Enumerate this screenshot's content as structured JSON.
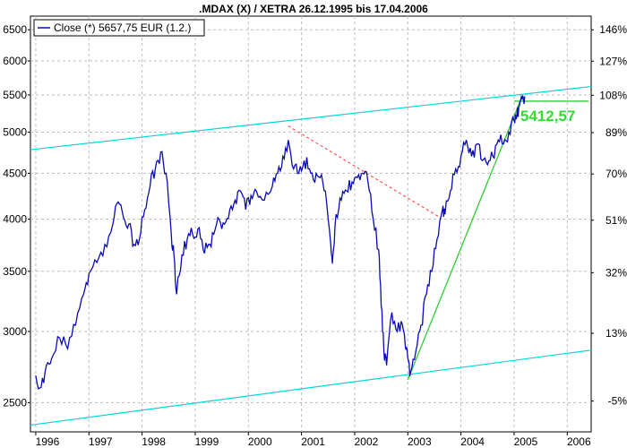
{
  "colors": {
    "price_line": "#0a0ab4",
    "channel": "#00d8d8",
    "support": "#33cc33",
    "resistance": "#ff3333",
    "annotation": "#33dd33",
    "grid": "#bdbdbd"
  },
  "chart_data": {
    "type": "line",
    "title": ".MDAX (X) / XETRA 26.12.1995 bis 17.04.2006",
    "legend": {
      "label": "Close (*) 5657,75 EUR (1.2.)",
      "placement": "top-left"
    },
    "y_scale": "log",
    "ylim": [
      2330,
      6700
    ],
    "xlim": [
      1995.9,
      2006.45
    ],
    "x_tick_labels": [
      "1996",
      "1997",
      "1998",
      "1999",
      "2000",
      "2001",
      "2002",
      "2003",
      "2004",
      "2005",
      "2006"
    ],
    "x_ticks": [
      1996,
      1997,
      1998,
      1999,
      2000,
      2001,
      2002,
      2003,
      2004,
      2005,
      2006
    ],
    "y_ticks_left": [
      2500,
      3000,
      3500,
      4000,
      4500,
      5000,
      5500,
      6000,
      6500
    ],
    "y_tick_labels_left": [
      "2500",
      "3000",
      "3500",
      "4000",
      "4500",
      "5000",
      "5500",
      "6000",
      "6500"
    ],
    "y_ticks_right": [
      -5,
      13,
      32,
      51,
      70,
      89,
      108,
      127,
      146
    ],
    "y_tick_labels_right": [
      "-5%",
      "13%",
      "32%",
      "51%",
      "70%",
      "89%",
      "108%",
      "127%",
      "146%"
    ],
    "right_axis_base": 2642,
    "grid": true,
    "series": [
      {
        "points": [
          [
            1996.0,
            2680
          ],
          [
            1996.1,
            2600
          ],
          [
            1996.2,
            2750
          ],
          [
            1996.3,
            2800
          ],
          [
            1996.45,
            2950
          ],
          [
            1996.6,
            2870
          ],
          [
            1996.75,
            3050
          ],
          [
            1996.9,
            3300
          ],
          [
            1997.0,
            3480
          ],
          [
            1997.15,
            3580
          ],
          [
            1997.3,
            3750
          ],
          [
            1997.45,
            3950
          ],
          [
            1997.55,
            4180
          ],
          [
            1997.65,
            4020
          ],
          [
            1997.75,
            3950
          ],
          [
            1997.85,
            3750
          ],
          [
            1997.95,
            3800
          ],
          [
            1998.05,
            4100
          ],
          [
            1998.15,
            4350
          ],
          [
            1998.25,
            4550
          ],
          [
            1998.35,
            4750
          ],
          [
            1998.45,
            4500
          ],
          [
            1998.55,
            3850
          ],
          [
            1998.6,
            3650
          ],
          [
            1998.65,
            3300
          ],
          [
            1998.75,
            3650
          ],
          [
            1998.85,
            3800
          ],
          [
            1998.95,
            3850
          ],
          [
            1999.05,
            3900
          ],
          [
            1999.15,
            3700
          ],
          [
            1999.25,
            3750
          ],
          [
            1999.35,
            3850
          ],
          [
            1999.45,
            4000
          ],
          [
            1999.55,
            3950
          ],
          [
            1999.65,
            4100
          ],
          [
            1999.75,
            4200
          ],
          [
            1999.85,
            4300
          ],
          [
            1999.95,
            4100
          ],
          [
            2000.05,
            4250
          ],
          [
            2000.15,
            4300
          ],
          [
            2000.3,
            4200
          ],
          [
            2000.45,
            4350
          ],
          [
            2000.55,
            4500
          ],
          [
            2000.65,
            4700
          ],
          [
            2000.75,
            4900
          ],
          [
            2000.85,
            4550
          ],
          [
            2000.95,
            4500
          ],
          [
            2001.05,
            4650
          ],
          [
            2001.15,
            4550
          ],
          [
            2001.25,
            4400
          ],
          [
            2001.35,
            4450
          ],
          [
            2001.45,
            4300
          ],
          [
            2001.55,
            3750
          ],
          [
            2001.58,
            3570
          ],
          [
            2001.65,
            4050
          ],
          [
            2001.75,
            4200
          ],
          [
            2001.85,
            4300
          ],
          [
            2001.95,
            4400
          ],
          [
            2002.05,
            4450
          ],
          [
            2002.15,
            4500
          ],
          [
            2002.25,
            4400
          ],
          [
            2002.35,
            4000
          ],
          [
            2002.45,
            3700
          ],
          [
            2002.5,
            3200
          ],
          [
            2002.55,
            2850
          ],
          [
            2002.6,
            2750
          ],
          [
            2002.7,
            3150
          ],
          [
            2002.8,
            3000
          ],
          [
            2002.9,
            3050
          ],
          [
            2002.95,
            2900
          ],
          [
            2003.0,
            2800
          ],
          [
            2003.05,
            2700
          ],
          [
            2003.15,
            2850
          ],
          [
            2003.25,
            3050
          ],
          [
            2003.35,
            3300
          ],
          [
            2003.45,
            3500
          ],
          [
            2003.55,
            3800
          ],
          [
            2003.65,
            4100
          ],
          [
            2003.7,
            4050
          ],
          [
            2003.8,
            4300
          ],
          [
            2003.9,
            4550
          ],
          [
            2004.0,
            4700
          ],
          [
            2004.1,
            4900
          ],
          [
            2004.2,
            4700
          ],
          [
            2004.3,
            4850
          ],
          [
            2004.4,
            4650
          ],
          [
            2004.5,
            4600
          ],
          [
            2004.6,
            4700
          ],
          [
            2004.7,
            4900
          ],
          [
            2004.8,
            4850
          ],
          [
            2004.9,
            5000
          ],
          [
            2005.0,
            5150
          ],
          [
            2005.05,
            5200
          ],
          [
            2005.1,
            5350
          ],
          [
            2005.15,
            5450
          ],
          [
            2005.2,
            5480
          ]
        ]
      }
    ],
    "lines": [
      {
        "kind": "channel-upper",
        "from": [
          1995.9,
          4780
        ],
        "to": [
          2006.45,
          5620
        ]
      },
      {
        "kind": "channel-lower",
        "from": [
          1995.9,
          2360
        ],
        "to": [
          2006.45,
          2860
        ]
      },
      {
        "kind": "resistance-dashed",
        "from": [
          2000.75,
          5080
        ],
        "to": [
          2003.6,
          4020
        ]
      },
      {
        "kind": "support",
        "from": [
          2003.0,
          2650
        ],
        "to": [
          2005.15,
          5480
        ]
      },
      {
        "kind": "level",
        "from": [
          2005.0,
          5412.57
        ],
        "to": [
          2006.4,
          5412.57
        ]
      }
    ],
    "annotations": [
      {
        "text": "5412,57",
        "x": 2005.05,
        "y": 5412.57
      }
    ]
  }
}
